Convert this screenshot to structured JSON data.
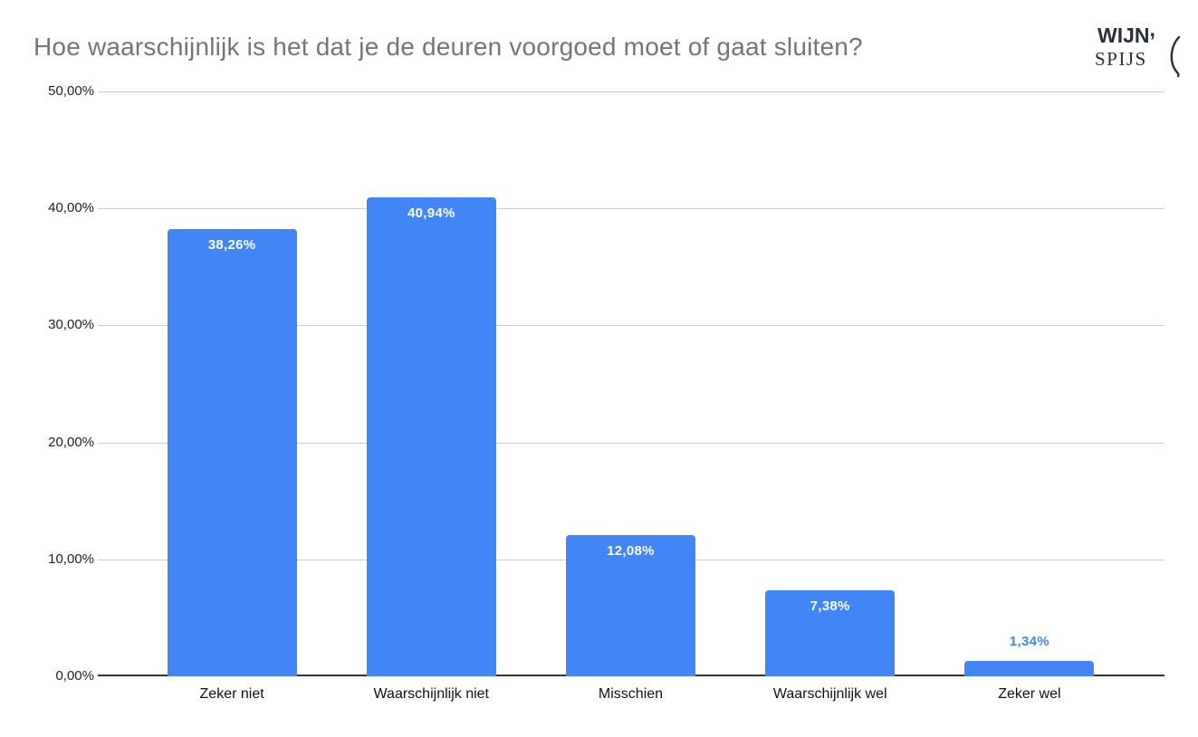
{
  "title": "Hoe waarschijnlijk is het dat je de deuren voorgoed moet of gaat sluiten?",
  "logo": {
    "line1": "WIJN",
    "mark": ",",
    "line2": "SPIJS"
  },
  "colors": {
    "bar": "#4285f4",
    "title": "#757575",
    "gridline": "#cccccc",
    "axis_line": "#333333",
    "value_label_inside": "#ffffff",
    "value_label_outside": "#4285f4",
    "logo": "#2a2e39"
  },
  "chart_data": {
    "type": "bar",
    "title": "Hoe waarschijnlijk is het dat je de deuren voorgoed moet of gaat sluiten?",
    "categories": [
      "Zeker niet",
      "Waarschijnlijk niet",
      "Misschien",
      "Waarschijnlijk wel",
      "Zeker wel"
    ],
    "values": [
      38.26,
      40.94,
      12.08,
      7.38,
      1.34
    ],
    "value_labels": [
      "38,26%",
      "40,94%",
      "12,08%",
      "7,38%",
      "1,34%"
    ],
    "xlabel": "",
    "ylabel": "",
    "ylim": [
      0,
      50
    ],
    "yticks": [
      "0,00%",
      "10,00%",
      "20,00%",
      "30,00%",
      "40,00%",
      "50,00%"
    ],
    "grid": true,
    "legend": "none"
  }
}
